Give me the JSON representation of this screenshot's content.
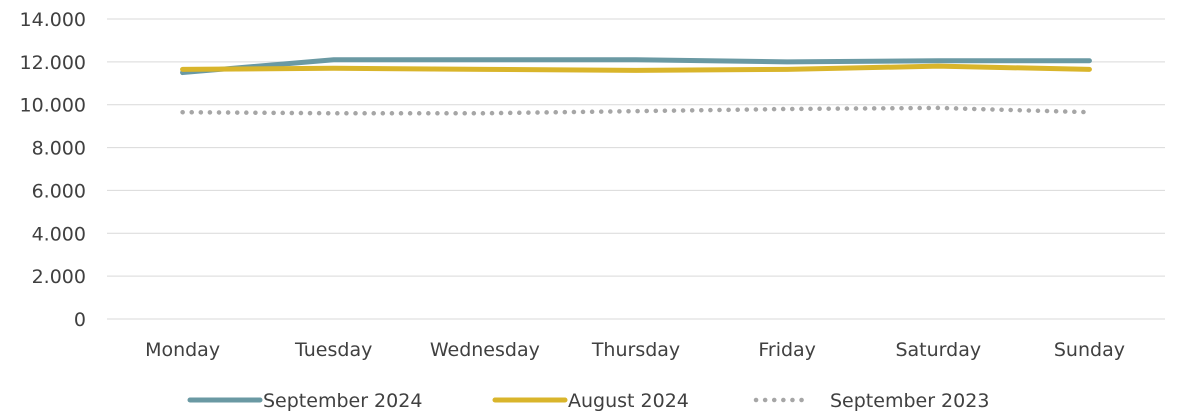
{
  "chart_data": {
    "type": "line",
    "title": "",
    "xlabel": "",
    "ylabel": "",
    "categories": [
      "Monday",
      "Tuesday",
      "Wednesday",
      "Thursday",
      "Friday",
      "Saturday",
      "Sunday"
    ],
    "ylim": [
      0,
      14000
    ],
    "yticks": [
      {
        "value": 0,
        "label": "0"
      },
      {
        "value": 2000,
        "label": "2.000"
      },
      {
        "value": 4000,
        "label": "4.000"
      },
      {
        "value": 6000,
        "label": "6.000"
      },
      {
        "value": 8000,
        "label": "8.000"
      },
      {
        "value": 10000,
        "label": "10.000"
      },
      {
        "value": 12000,
        "label": "12.000"
      },
      {
        "value": 14000,
        "label": "14.000"
      }
    ],
    "grid": true,
    "legend_position": "bottom",
    "series": [
      {
        "name": "September 2024",
        "color": "#6A99A3",
        "style": "solid",
        "values": [
          11500,
          12100,
          12100,
          12100,
          12000,
          12050,
          12050
        ]
      },
      {
        "name": "August 2024",
        "color": "#D9B52B",
        "style": "solid",
        "values": [
          11650,
          11700,
          11650,
          11600,
          11650,
          11800,
          11650
        ]
      },
      {
        "name": "September 2023",
        "color": "#A6A6A6",
        "style": "dotted",
        "values": [
          9650,
          9600,
          9600,
          9700,
          9800,
          9850,
          9650
        ]
      }
    ]
  }
}
